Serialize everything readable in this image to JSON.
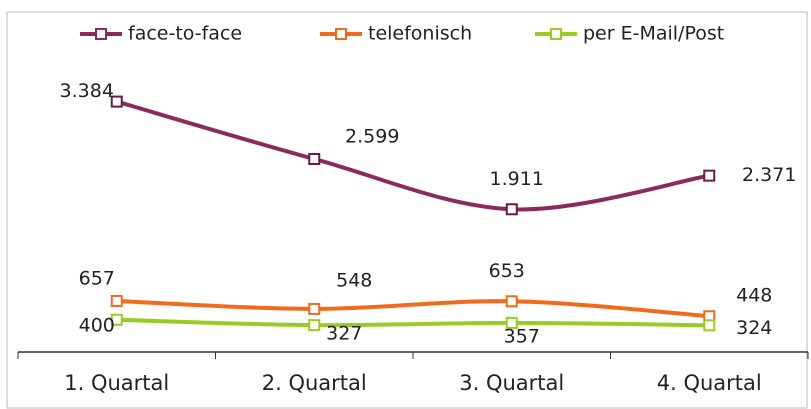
{
  "chart_data": {
    "type": "line",
    "categories": [
      "1. Quartal",
      "2. Quartal",
      "3. Quartal",
      "4. Quartal"
    ],
    "series": [
      {
        "name": "face-to-face",
        "color": "#8c2a5e",
        "values": [
          3384,
          2599,
          1911,
          2371
        ],
        "value_labels": [
          "3.384",
          "2.599",
          "1.911",
          "2.371"
        ]
      },
      {
        "name": "telefonisch",
        "color": "#f26a1b",
        "values": [
          657,
          548,
          653,
          448
        ]
      },
      {
        "name": "per E-Mail/Post",
        "color": "#99cc22",
        "values": [
          400,
          327,
          357,
          324
        ]
      }
    ],
    "ylim": [
      0,
      4500
    ],
    "legend": "top",
    "smooth": true
  }
}
